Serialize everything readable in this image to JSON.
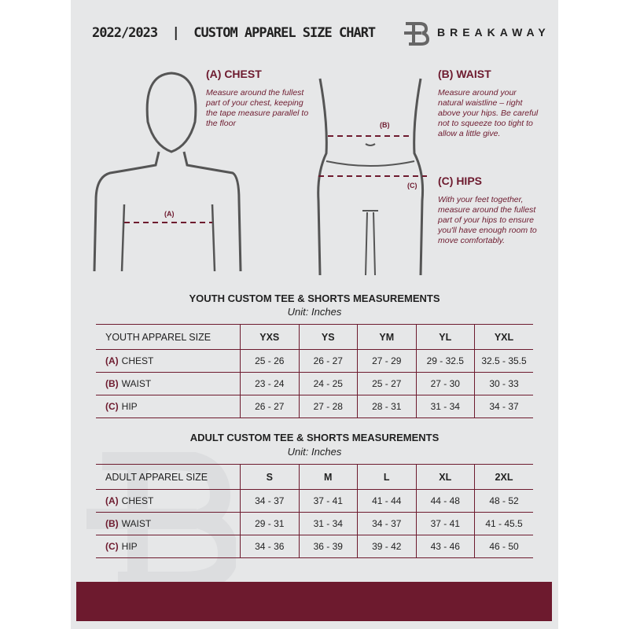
{
  "header": {
    "title": "2022/2023  |  CUSTOM APPAREL SIZE CHART",
    "brand": "BREAKAWAY",
    "logo_letter": "B"
  },
  "measures": {
    "chest": {
      "title": "(A) CHEST",
      "desc": "Measure around the fullest part of your chest, keeping the tape measure parallel to the floor",
      "marker": "(A)"
    },
    "waist": {
      "title": "(B) WAIST",
      "desc": "Measure around your natural waistline – right above your hips. Be careful not to squeeze too tight to allow a little give.",
      "marker": "(B)"
    },
    "hips": {
      "title": "(C) HIPS",
      "desc": "With your feet together, measure around the fullest part of your hips to ensure you'll have enough room to move comfortably.",
      "marker": "(C)"
    }
  },
  "youth": {
    "title": "YOUTH CUSTOM TEE & SHORTS MEASUREMENTS",
    "unit": "Unit: Inches",
    "size_label": "YOUTH APPAREL SIZE",
    "sizes": [
      "YXS",
      "YS",
      "YM",
      "YL",
      "YXL"
    ],
    "rows": [
      {
        "code": "(A)",
        "name": "CHEST",
        "values": [
          "25 - 26",
          "26 - 27",
          "27 - 29",
          "29 - 32.5",
          "32.5 - 35.5"
        ]
      },
      {
        "code": "(B)",
        "name": "WAIST",
        "values": [
          "23 - 24",
          "24 - 25",
          "25 - 27",
          "27 - 30",
          "30 - 33"
        ]
      },
      {
        "code": "(C)",
        "name": "HIP",
        "values": [
          "26 - 27",
          "27 - 28",
          "28 - 31",
          "31 - 34",
          "34 - 37"
        ]
      }
    ]
  },
  "adult": {
    "title": "ADULT CUSTOM TEE & SHORTS MEASUREMENTS",
    "unit": "Unit: Inches",
    "size_label": "ADULT APPAREL SIZE",
    "sizes": [
      "S",
      "M",
      "L",
      "XL",
      "2XL"
    ],
    "rows": [
      {
        "code": "(A)",
        "name": "CHEST",
        "values": [
          "34 - 37",
          "37 - 41",
          "41 - 44",
          "44 - 48",
          "48 - 52"
        ]
      },
      {
        "code": "(B)",
        "name": "WAIST",
        "values": [
          "29 - 31",
          "31 - 34",
          "34 - 37",
          "37 - 41",
          "41 - 45.5"
        ]
      },
      {
        "code": "(C)",
        "name": "HIP",
        "values": [
          "34 - 36",
          "36 - 39",
          "39 - 42",
          "43 - 46",
          "46 - 50"
        ]
      }
    ]
  },
  "colors": {
    "accent": "#6d1a2e",
    "background": "#e6e7e8"
  }
}
